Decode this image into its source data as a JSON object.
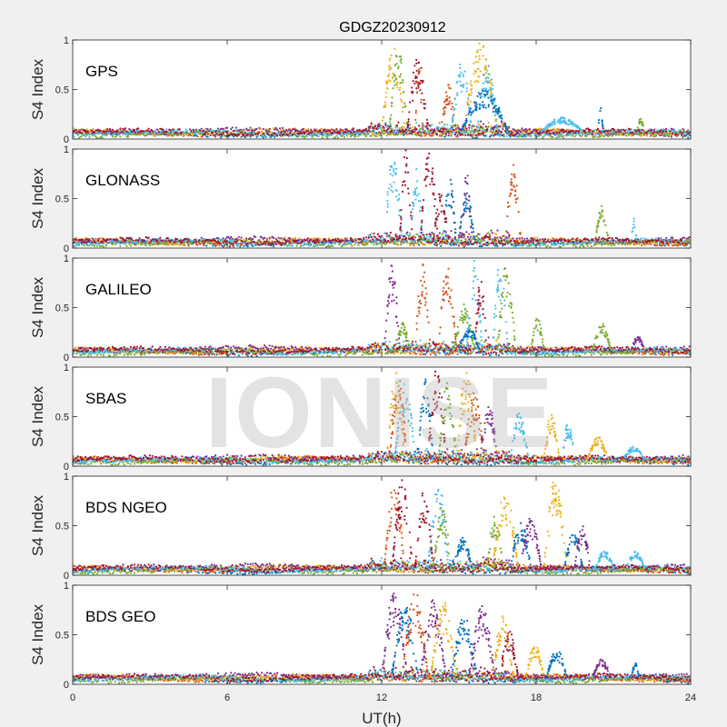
{
  "figure": {
    "title": "GDGZ20230912",
    "watermark": "IONISE"
  },
  "colors": {
    "series": [
      "#0072BD",
      "#D95319",
      "#EDB120",
      "#7E2F8E",
      "#77AC30",
      "#4DBEEE",
      "#A2142F"
    ],
    "axes_background": "#ffffff",
    "figure_background": "#f0f0f0"
  },
  "chart_data": {
    "type": "scatter",
    "layout": "six vertically stacked panels sharing the x axis",
    "xlabel": "UT(h)",
    "xlim": [
      0,
      24
    ],
    "xticks": [
      0,
      6,
      12,
      18,
      24
    ],
    "ylabel": "S4 Index",
    "ylim": [
      0,
      1
    ],
    "yticks": [
      0,
      0.5,
      1
    ],
    "ytick_labels": [
      "0",
      "0.5",
      "1"
    ],
    "grid": false,
    "legend": "none",
    "panels": [
      {
        "label": "GPS",
        "baseline_range": [
          0,
          24
        ],
        "bursts": [
          {
            "color": 2,
            "t": [
              12.0,
              12.9
            ],
            "peak": 0.95
          },
          {
            "color": 4,
            "t": [
              12.3,
              13.0
            ],
            "peak": 0.95
          },
          {
            "color": 6,
            "t": [
              13.0,
              13.8
            ],
            "peak": 0.85
          },
          {
            "color": 1,
            "t": [
              13.3,
              13.6
            ],
            "peak": 0.75
          },
          {
            "color": 1,
            "t": [
              14.3,
              14.9
            ],
            "peak": 0.55
          },
          {
            "color": 5,
            "t": [
              14.7,
              15.5
            ],
            "peak": 0.8
          },
          {
            "color": 2,
            "t": [
              15.2,
              16.5
            ],
            "peak": 1.0
          },
          {
            "color": 5,
            "t": [
              15.7,
              16.5
            ],
            "peak": 0.75
          },
          {
            "color": 0,
            "t": [
              15.1,
              16.9
            ],
            "peak": 0.5
          },
          {
            "color": 5,
            "t": [
              18.2,
              19.8
            ],
            "peak": 0.22
          },
          {
            "color": 0,
            "t": [
              20.4,
              20.6
            ],
            "peak": 0.35
          },
          {
            "color": 4,
            "t": [
              21.9,
              22.2
            ],
            "peak": 0.22
          }
        ]
      },
      {
        "label": "GLONASS",
        "baseline_range": [
          0,
          24
        ],
        "bursts": [
          {
            "color": 5,
            "t": [
              12.1,
              12.8
            ],
            "peak": 0.95
          },
          {
            "color": 6,
            "t": [
              12.7,
              13.2
            ],
            "peak": 1.0
          },
          {
            "color": 6,
            "t": [
              13.5,
              14.2
            ],
            "peak": 1.0
          },
          {
            "color": 5,
            "t": [
              13.1,
              13.6
            ],
            "peak": 0.8
          },
          {
            "color": 0,
            "t": [
              14.4,
              14.9
            ],
            "peak": 0.7
          },
          {
            "color": 6,
            "t": [
              14.0,
              14.6
            ],
            "peak": 0.6
          },
          {
            "color": 0,
            "t": [
              15.0,
              15.6
            ],
            "peak": 0.6
          },
          {
            "color": 3,
            "t": [
              15.1,
              15.5
            ],
            "peak": 0.8
          },
          {
            "color": 1,
            "t": [
              16.8,
              17.4
            ],
            "peak": 0.85
          },
          {
            "color": 4,
            "t": [
              20.3,
              20.8
            ],
            "peak": 0.45
          },
          {
            "color": 5,
            "t": [
              21.7,
              21.9
            ],
            "peak": 0.3
          }
        ]
      },
      {
        "label": "GALILEO",
        "baseline_range": [
          0,
          24
        ],
        "bursts": [
          {
            "color": 3,
            "t": [
              12.1,
              12.7
            ],
            "peak": 0.95
          },
          {
            "color": 4,
            "t": [
              12.5,
              13.1
            ],
            "peak": 0.35
          },
          {
            "color": 1,
            "t": [
              13.3,
              13.9
            ],
            "peak": 0.95
          },
          {
            "color": 1,
            "t": [
              14.2,
              14.9
            ],
            "peak": 0.95
          },
          {
            "color": 4,
            "t": [
              14.8,
              15.6
            ],
            "peak": 0.55
          },
          {
            "color": 5,
            "t": [
              15.3,
              15.9
            ],
            "peak": 1.0
          },
          {
            "color": 5,
            "t": [
              16.3,
              16.9
            ],
            "peak": 0.95
          },
          {
            "color": 4,
            "t": [
              16.5,
              17.2
            ],
            "peak": 0.95
          },
          {
            "color": 0,
            "t": [
              15.0,
              15.8
            ],
            "peak": 0.3
          },
          {
            "color": 6,
            "t": [
              15.6,
              16.1
            ],
            "peak": 0.8
          },
          {
            "color": 4,
            "t": [
              17.8,
              18.3
            ],
            "peak": 0.4
          },
          {
            "color": 4,
            "t": [
              20.2,
              20.9
            ],
            "peak": 0.35
          },
          {
            "color": 3,
            "t": [
              21.7,
              22.2
            ],
            "peak": 0.22
          }
        ]
      },
      {
        "label": "SBAS",
        "baseline_range": [
          0,
          24
        ],
        "bursts": [
          {
            "color": 2,
            "t": [
              12.2,
              12.9
            ],
            "peak": 0.95
          },
          {
            "color": 1,
            "t": [
              12.3,
              13.0
            ],
            "peak": 0.9
          },
          {
            "color": 5,
            "t": [
              12.5,
              13.3
            ],
            "peak": 0.85
          },
          {
            "color": 0,
            "t": [
              13.4,
              14.0
            ],
            "peak": 0.9
          },
          {
            "color": 6,
            "t": [
              13.8,
              14.5
            ],
            "peak": 1.0
          },
          {
            "color": 4,
            "t": [
              14.2,
              14.9
            ],
            "peak": 0.85
          },
          {
            "color": 2,
            "t": [
              14.9,
              15.7
            ],
            "peak": 0.95
          },
          {
            "color": 1,
            "t": [
              15.2,
              16.0
            ],
            "peak": 0.75
          },
          {
            "color": 3,
            "t": [
              15.8,
              16.5
            ],
            "peak": 0.65
          },
          {
            "color": 5,
            "t": [
              17.0,
              17.7
            ],
            "peak": 0.55
          },
          {
            "color": 2,
            "t": [
              18.3,
              18.9
            ],
            "peak": 0.55
          },
          {
            "color": 5,
            "t": [
              19.0,
              19.5
            ],
            "peak": 0.45
          },
          {
            "color": 2,
            "t": [
              20.0,
              20.8
            ],
            "peak": 0.3
          },
          {
            "color": 5,
            "t": [
              21.4,
              22.2
            ],
            "peak": 0.2
          }
        ]
      },
      {
        "label": "BDS NGEO",
        "baseline_range": [
          0,
          24
        ],
        "bursts": [
          {
            "color": 1,
            "t": [
              12.1,
              12.9
            ],
            "peak": 0.95
          },
          {
            "color": 6,
            "t": [
              12.4,
              13.2
            ],
            "peak": 1.0
          },
          {
            "color": 6,
            "t": [
              13.3,
              14.0
            ],
            "peak": 0.9
          },
          {
            "color": 5,
            "t": [
              13.8,
              14.6
            ],
            "peak": 0.95
          },
          {
            "color": 4,
            "t": [
              14.0,
              14.7
            ],
            "peak": 0.7
          },
          {
            "color": 0,
            "t": [
              14.8,
              15.5
            ],
            "peak": 0.4
          },
          {
            "color": 4,
            "t": [
              16.1,
              16.7
            ],
            "peak": 0.65
          },
          {
            "color": 2,
            "t": [
              16.3,
              17.3
            ],
            "peak": 0.85
          },
          {
            "color": 0,
            "t": [
              17.0,
              17.8
            ],
            "peak": 0.55
          },
          {
            "color": 3,
            "t": [
              17.4,
              18.2
            ],
            "peak": 0.6
          },
          {
            "color": 2,
            "t": [
              18.3,
              19.2
            ],
            "peak": 1.0
          },
          {
            "color": 0,
            "t": [
              19.1,
              19.8
            ],
            "peak": 0.45
          },
          {
            "color": 3,
            "t": [
              19.5,
              20.1
            ],
            "peak": 0.5
          },
          {
            "color": 5,
            "t": [
              20.3,
              21.0
            ],
            "peak": 0.25
          },
          {
            "color": 5,
            "t": [
              21.5,
              22.2
            ],
            "peak": 0.25
          }
        ]
      },
      {
        "label": "BDS GEO",
        "baseline_range": [
          0,
          24
        ],
        "bursts": [
          {
            "color": 3,
            "t": [
              12.0,
              13.0
            ],
            "peak": 0.95
          },
          {
            "color": 0,
            "t": [
              12.4,
              13.4
            ],
            "peak": 0.85
          },
          {
            "color": 1,
            "t": [
              12.8,
              13.8
            ],
            "peak": 0.95
          },
          {
            "color": 3,
            "t": [
              13.5,
              14.5
            ],
            "peak": 0.85
          },
          {
            "color": 2,
            "t": [
              13.9,
              14.9
            ],
            "peak": 0.85
          },
          {
            "color": 0,
            "t": [
              14.7,
              15.7
            ],
            "peak": 0.7
          },
          {
            "color": 3,
            "t": [
              15.4,
              16.4
            ],
            "peak": 0.8
          },
          {
            "color": 2,
            "t": [
              16.3,
              17.1
            ],
            "peak": 0.7
          },
          {
            "color": 6,
            "t": [
              16.6,
              17.3
            ],
            "peak": 0.55
          },
          {
            "color": 2,
            "t": [
              17.6,
              18.3
            ],
            "peak": 0.4
          },
          {
            "color": 0,
            "t": [
              18.4,
              19.2
            ],
            "peak": 0.35
          },
          {
            "color": 3,
            "t": [
              20.2,
              20.9
            ],
            "peak": 0.25
          },
          {
            "color": 0,
            "t": [
              21.7,
              22.0
            ],
            "peak": 0.22
          }
        ]
      }
    ]
  }
}
